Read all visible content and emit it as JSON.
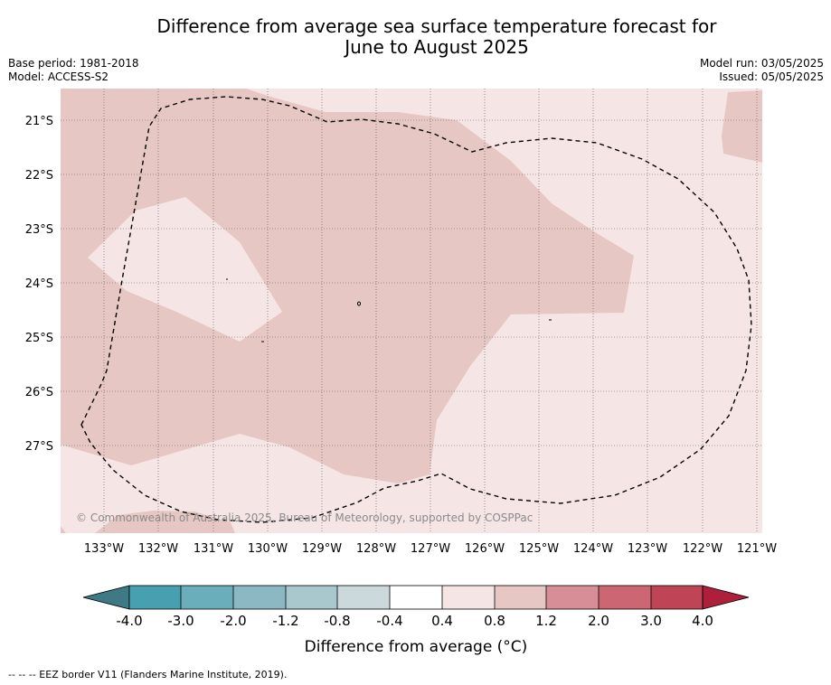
{
  "title_line1": "Difference from average sea surface temperature forecast for",
  "title_line2": "June to August 2025",
  "base_period": "Base period: 1981-2018",
  "model": "Model: ACCESS-S2",
  "model_run": "Model run: 03/05/2025",
  "issued": "Issued: 05/05/2025",
  "copyright": "© Commonwealth of Australia 2025, Bureau of Meteorology, supported by COSPPac",
  "lat_labels": [
    "21°S",
    "22°S",
    "23°S",
    "24°S",
    "25°S",
    "26°S",
    "27°S"
  ],
  "lon_labels": [
    "133°W",
    "132°W",
    "131°W",
    "130°W",
    "129°W",
    "128°W",
    "127°W",
    "126°W",
    "125°W",
    "124°W",
    "123°W",
    "122°W",
    "121°W"
  ],
  "colorbar": {
    "label": "Difference from average (°C)",
    "tick_labels": [
      "-4.0",
      "-3.0",
      "-2.0",
      "-1.2",
      "-0.8",
      "-0.4",
      "0.4",
      "0.8",
      "1.2",
      "2.0",
      "3.0",
      "4.0"
    ],
    "colors": [
      "#3d7a84",
      "#46a0b0",
      "#6aaebb",
      "#8bb8c3",
      "#a9c8cd",
      "#ccd9dc",
      "#ffffff",
      "#f5e6e5",
      "#e7c7c3",
      "#d88e97",
      "#cd6673",
      "#bf4556",
      "#ad1f3a"
    ]
  },
  "map_colors": {
    "light": "#f5e6e5",
    "medium": "#e7c7c3"
  },
  "footnote": "--  --  -- EEZ border V11 (Flanders Marine Institute, 2019)."
}
